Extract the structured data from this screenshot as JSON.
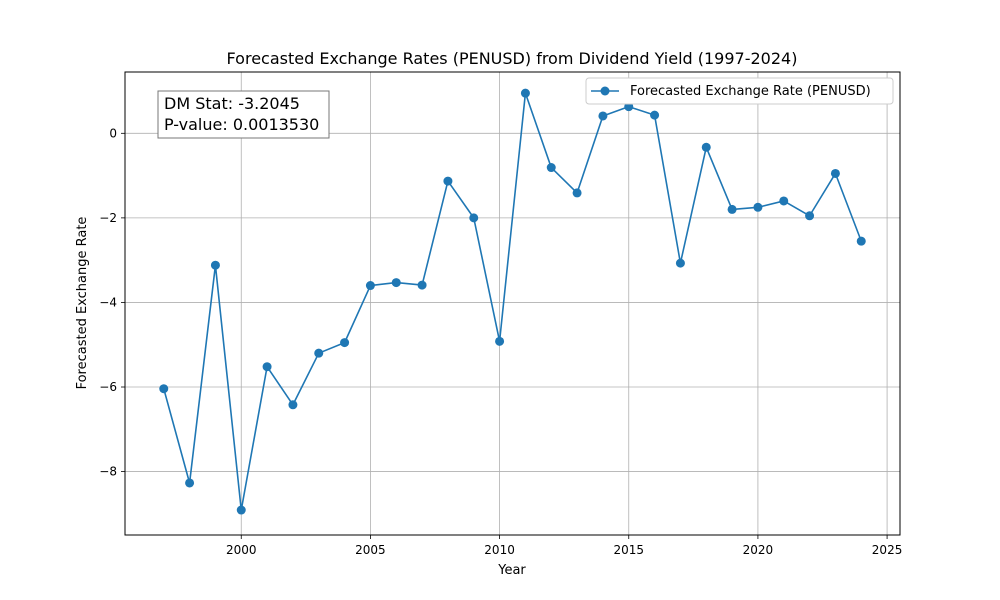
{
  "chart_data": {
    "type": "line",
    "title": "Forecasted Exchange Rates (PENUSD) from Dividend Yield (1997-2024)",
    "xlabel": "Year",
    "ylabel": "Forecasted Exchange Rate",
    "xlim": [
      1995.5,
      2025.5
    ],
    "ylim": [
      -9.5,
      1.45
    ],
    "xticks": [
      2000,
      2005,
      2010,
      2015,
      2020,
      2025
    ],
    "yticks": [
      -8,
      -6,
      -4,
      -2,
      0
    ],
    "grid": true,
    "legend_position": "upper-right",
    "annotation": {
      "line1": "DM Stat: -3.2045",
      "line2": "P-value: 0.0013530"
    },
    "series": [
      {
        "name": "Forecasted Exchange Rate (PENUSD)",
        "color": "#1f77b4",
        "x": [
          1997,
          1998,
          1999,
          2000,
          2001,
          2002,
          2003,
          2004,
          2005,
          2006,
          2007,
          2008,
          2009,
          2010,
          2011,
          2012,
          2013,
          2014,
          2015,
          2016,
          2017,
          2018,
          2019,
          2020,
          2021,
          2022,
          2023,
          2024
        ],
        "y": [
          -6.04,
          -8.27,
          -3.12,
          -8.91,
          -5.52,
          -6.42,
          -5.2,
          -4.95,
          -3.6,
          -3.53,
          -3.59,
          -1.13,
          -2.0,
          -4.92,
          0.95,
          -0.81,
          -1.41,
          0.41,
          0.63,
          0.43,
          -3.07,
          -0.33,
          -1.8,
          -1.75,
          -1.6,
          -1.95,
          -0.95,
          -2.55
        ]
      }
    ]
  }
}
